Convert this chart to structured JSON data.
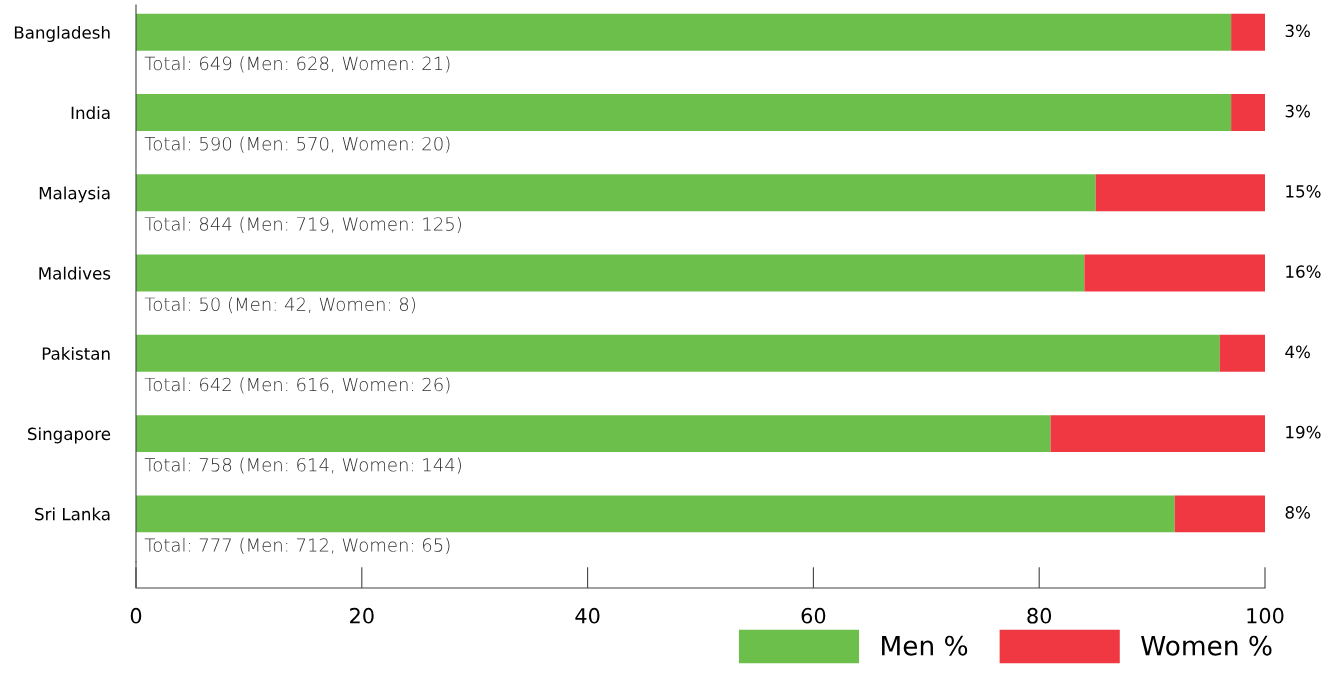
{
  "chart_data": {
    "type": "bar",
    "orientation": "horizontal",
    "stacked": true,
    "categories": [
      "Bangladesh",
      "India",
      "Malaysia",
      "Maldives",
      "Pakistan",
      "Singapore",
      "Sri Lanka"
    ],
    "series": [
      {
        "name": "Men %",
        "color": "#6cbf4b",
        "values": [
          97,
          97,
          85,
          84,
          96,
          81,
          92
        ]
      },
      {
        "name": "Women %",
        "color": "#ef3842",
        "values": [
          3,
          3,
          15,
          16,
          4,
          19,
          8
        ],
        "value_labels": [
          "3%",
          "3%",
          "15%",
          "16%",
          "4%",
          "19%",
          "8%"
        ]
      }
    ],
    "xlim": [
      0,
      100
    ],
    "xticks": [
      0,
      20,
      40,
      60,
      80,
      100
    ],
    "grid": false,
    "legend": "bottom right",
    "annotations": [
      "Total: 649 (Men: 628, Women: 21)",
      "Total: 590 (Men: 570, Women: 20)",
      "Total: 844 (Men: 719, Women: 125)",
      "Total: 50 (Men: 42, Women: 8)",
      "Total: 642 (Men: 616, Women: 26)",
      "Total: 758 (Men: 614, Women: 144)",
      "Total: 777 (Men: 712, Women: 65)"
    ]
  }
}
